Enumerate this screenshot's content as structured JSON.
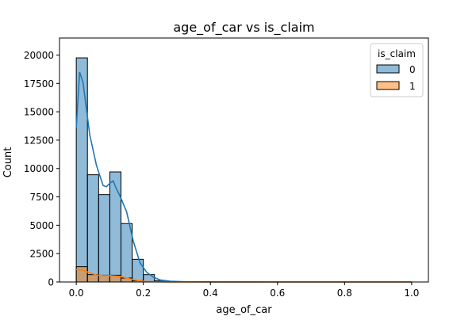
{
  "chart_data": {
    "type": "bar",
    "title": "age_of_car vs is_claim",
    "xlabel": "age_of_car",
    "ylabel": "Count",
    "xlim": [
      -0.05,
      1.05
    ],
    "ylim": [
      0,
      21500
    ],
    "x_ticks": [
      0.0,
      0.2,
      0.4,
      0.6,
      0.8,
      1.0
    ],
    "x_tick_labels": [
      "0.0",
      "0.2",
      "0.4",
      "0.6",
      "0.8",
      "1.0"
    ],
    "y_ticks": [
      0,
      2500,
      5000,
      7500,
      10000,
      12500,
      15000,
      17500,
      20000
    ],
    "y_tick_labels": [
      "0",
      "2500",
      "5000",
      "7500",
      "10000",
      "12500",
      "15000",
      "17500",
      "20000"
    ],
    "bin_edges": [
      0.0,
      0.0333,
      0.0667,
      0.1,
      0.1333,
      0.1667,
      0.2,
      0.2333,
      0.2667,
      0.3,
      0.3333,
      0.3667,
      0.4,
      0.4333,
      0.4667,
      0.5,
      0.5333,
      0.5667,
      0.6,
      0.6333,
      0.6667,
      0.7,
      0.7333,
      0.7667,
      0.8,
      0.8333,
      0.8667,
      0.9,
      0.9333,
      0.9667,
      1.0
    ],
    "series": [
      {
        "name": "0",
        "color": "#1f77b4",
        "values": [
          19750,
          9450,
          7700,
          9700,
          5150,
          2000,
          650,
          120,
          40,
          15,
          8,
          4,
          2,
          1,
          1,
          1,
          1,
          1,
          1,
          1,
          1,
          1,
          1,
          1,
          1,
          1,
          1,
          1,
          1,
          1
        ],
        "kde": [
          [
            0.0,
            13600
          ],
          [
            0.01,
            18500
          ],
          [
            0.02,
            17600
          ],
          [
            0.04,
            13000
          ],
          [
            0.06,
            10300
          ],
          [
            0.08,
            8500
          ],
          [
            0.09,
            8400
          ],
          [
            0.1,
            8700
          ],
          [
            0.11,
            8900
          ],
          [
            0.12,
            8200
          ],
          [
            0.13,
            7600
          ],
          [
            0.15,
            6200
          ],
          [
            0.17,
            3600
          ],
          [
            0.19,
            1700
          ],
          [
            0.21,
            850
          ],
          [
            0.23,
            420
          ],
          [
            0.25,
            180
          ],
          [
            0.28,
            70
          ],
          [
            0.32,
            25
          ],
          [
            0.4,
            5
          ],
          [
            0.6,
            1
          ],
          [
            1.0,
            0
          ]
        ]
      },
      {
        "name": "1",
        "color": "#ff7f0e",
        "values": [
          1350,
          650,
          600,
          600,
          350,
          120,
          40,
          10,
          4,
          2,
          1,
          0,
          0,
          0,
          0,
          0,
          0,
          0,
          0,
          0,
          0,
          0,
          0,
          0,
          0,
          0,
          0,
          0,
          0,
          0
        ],
        "kde": [
          [
            0.0,
            1100
          ],
          [
            0.02,
            1050
          ],
          [
            0.04,
            800
          ],
          [
            0.06,
            620
          ],
          [
            0.08,
            560
          ],
          [
            0.1,
            560
          ],
          [
            0.12,
            520
          ],
          [
            0.14,
            430
          ],
          [
            0.16,
            280
          ],
          [
            0.18,
            150
          ],
          [
            0.2,
            70
          ],
          [
            0.23,
            25
          ],
          [
            0.28,
            6
          ],
          [
            0.4,
            1
          ],
          [
            1.0,
            0
          ]
        ]
      }
    ],
    "legend": {
      "title": "is_claim",
      "placement": "top-right"
    }
  }
}
